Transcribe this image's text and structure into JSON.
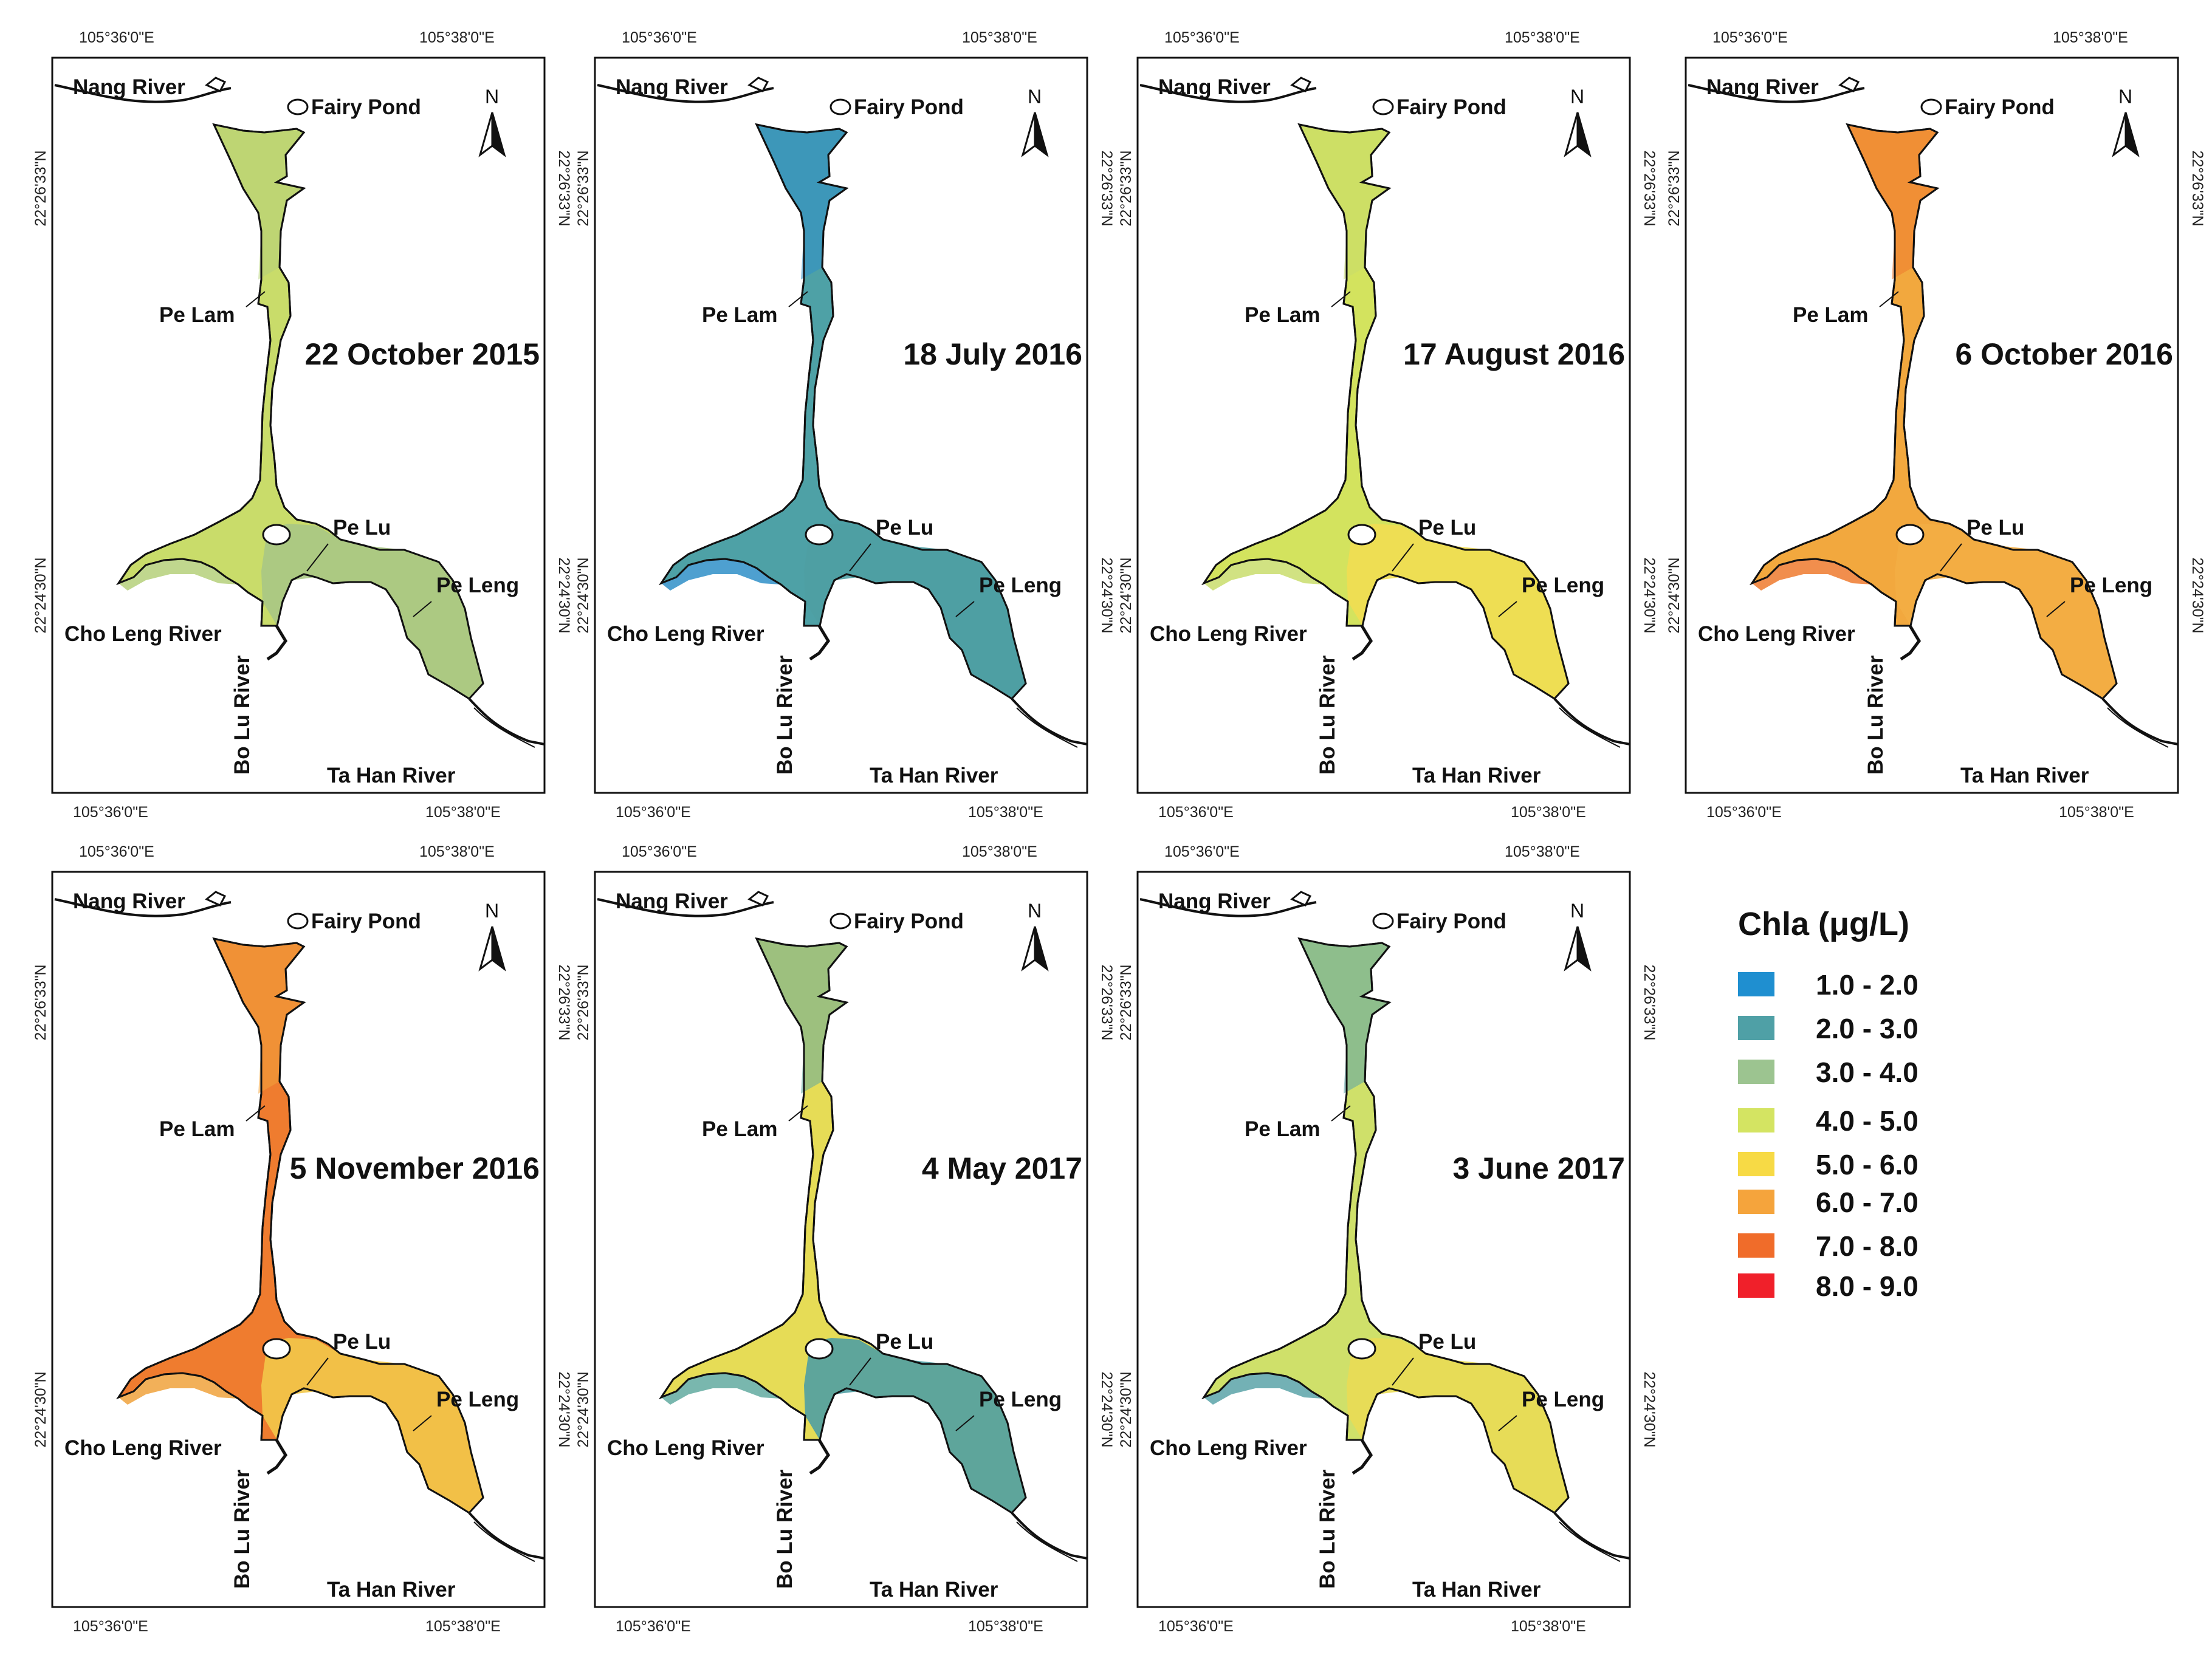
{
  "coords": {
    "lon_west": "105°36'0\"E",
    "lon_east": "105°38'0\"E",
    "lat_north": "22°26'33\"N",
    "lat_south": "22°24'30\"N"
  },
  "places": {
    "nang_river": "Nang River",
    "fairy_pond": "Fairy Pond",
    "pe_lam": "Pe Lam",
    "pe_lu": "Pe Lu",
    "pe_leng": "Pe Leng",
    "cho_leng_river": "Cho Leng River",
    "bo_lu_river": "Bo Lu River",
    "ta_han_river": "Ta Han River",
    "north": "N"
  },
  "panels": [
    {
      "date": "22 October 2015",
      "colors": {
        "main": "#c9dc6a",
        "south": "#a9c785",
        "alt": "#b5d07a"
      }
    },
    {
      "date": "18 July 2016",
      "colors": {
        "main": "#4ea1a6",
        "south": "#4f9ea3",
        "alt": "#2f8fc8"
      }
    },
    {
      "date": "17 August 2016",
      "colors": {
        "main": "#d3e35e",
        "south": "#f1dd52",
        "alt": "#c9dd6c"
      }
    },
    {
      "date": "6 October 2016",
      "colors": {
        "main": "#f2a83e",
        "south": "#f3ad44",
        "alt": "#ee7a2e"
      }
    },
    {
      "date": "5 November 2016",
      "colors": {
        "main": "#ef7c2f",
        "south": "#f2c84a",
        "alt": "#f0a23c"
      }
    },
    {
      "date": "4 May 2017",
      "colors": {
        "main": "#e6dc56",
        "south": "#4f9ea3",
        "alt": "#61aaa0"
      }
    },
    {
      "date": "3 June 2017",
      "colors": {
        "main": "#cfe06a",
        "south": "#e9dc55",
        "alt": "#5aa3a8"
      }
    }
  ],
  "legend": {
    "title": "Chla  (μg/L)",
    "items": [
      {
        "label": "1.0 - 2.0",
        "color": "#1f8fd0"
      },
      {
        "label": "2.0 - 3.0",
        "color": "#4fa0a6"
      },
      {
        "label": "3.0 - 4.0",
        "color": "#9cc490"
      },
      {
        "label": "4.0 - 5.0",
        "color": "#d4e462"
      },
      {
        "label": "5.0 - 6.0",
        "color": "#f7da45"
      },
      {
        "label": "6.0 - 7.0",
        "color": "#f5a43c"
      },
      {
        "label": "7.0 - 8.0",
        "color": "#f06c2a"
      },
      {
        "label": "8.0 - 9.0",
        "color": "#f0202a"
      }
    ]
  }
}
